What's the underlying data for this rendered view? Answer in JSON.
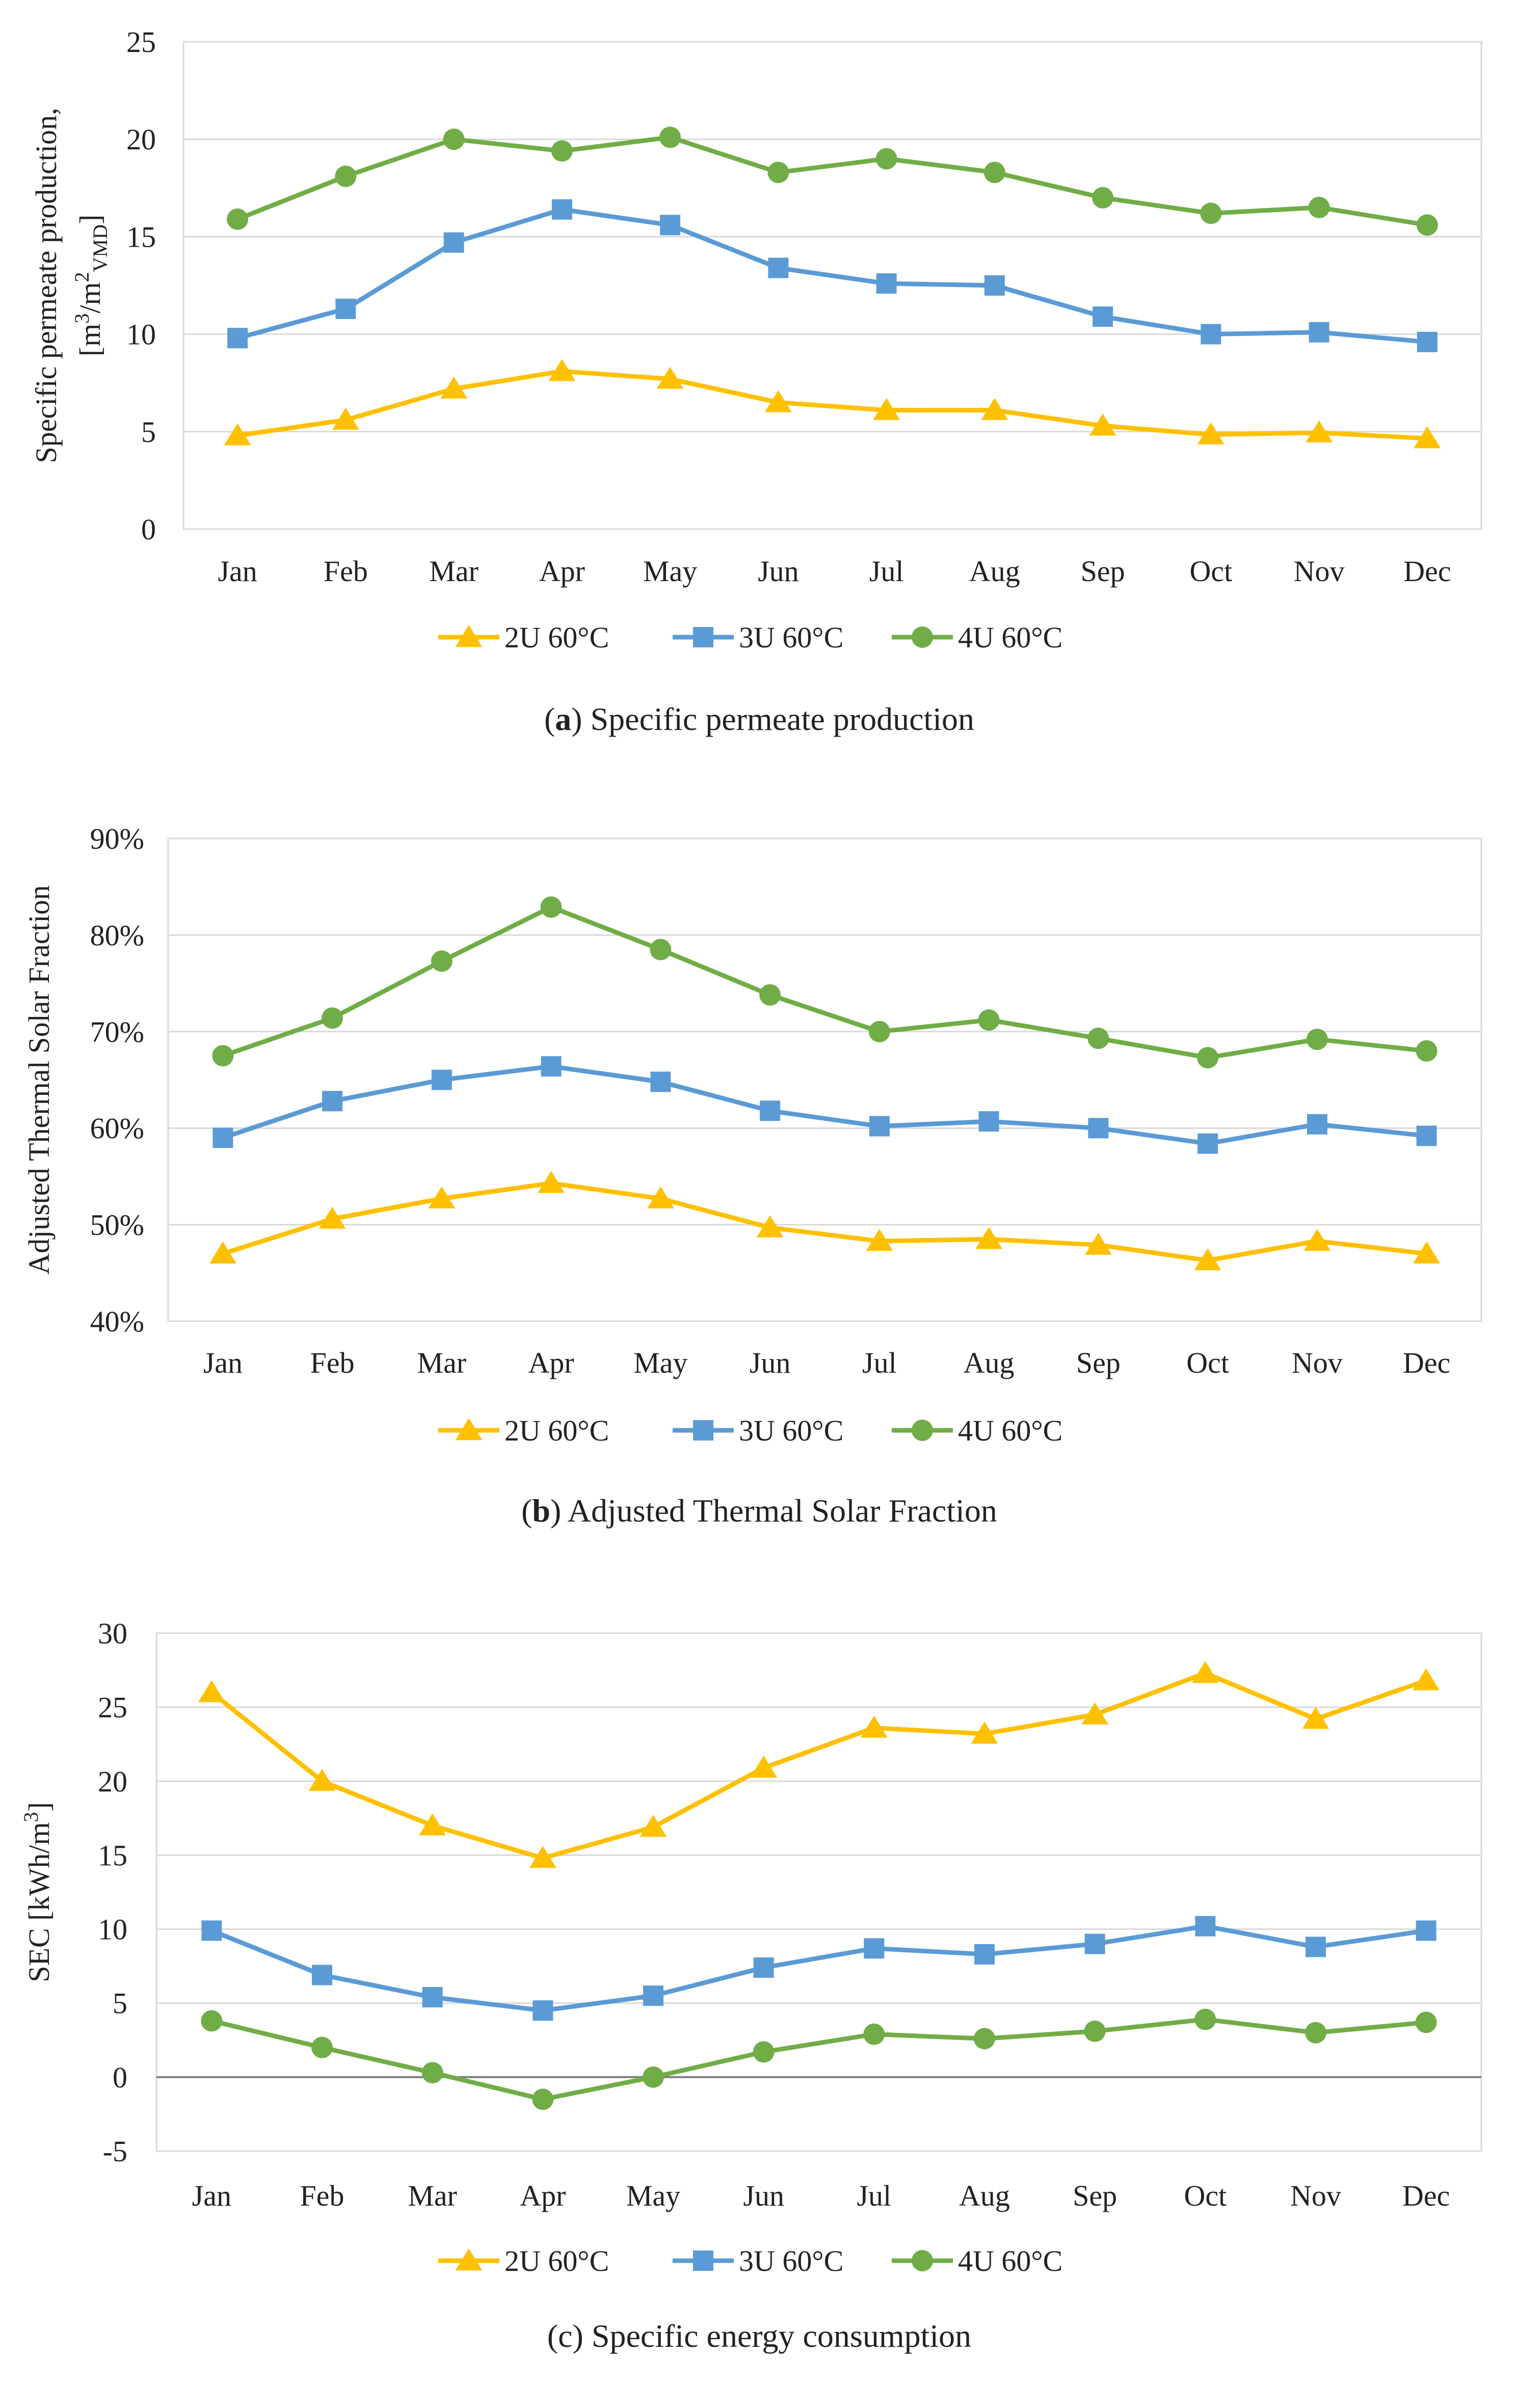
{
  "figure": {
    "series_colors": {
      "2U 60°C": "#FFC000",
      "3U 60°C": "#5B9BD5",
      "4U 60°C": "#70AD47"
    },
    "gridline_color": "#D9D9D9",
    "zero_line_color": "#7F7F7F"
  },
  "chart_data": [
    {
      "type": "line",
      "panel": "a",
      "caption_letter": "a",
      "caption_text": "Specific permeate production",
      "ylabel_line1": "Specific permeate production,",
      "ylabel_line2": "[m³/m²VMD]",
      "ylabel_parts": [
        "[m",
        "3",
        "/m",
        "2",
        "VMD",
        "]"
      ],
      "ylim": [
        0,
        25
      ],
      "yticks": [
        0,
        5,
        10,
        15,
        20,
        25
      ],
      "ytick_labels": [
        "0",
        "5",
        "10",
        "15",
        "20",
        "25"
      ],
      "categories": [
        "Jan",
        "Feb",
        "Mar",
        "Apr",
        "May",
        "Jun",
        "Jul",
        "Aug",
        "Sep",
        "Oct",
        "Nov",
        "Dec"
      ],
      "series": [
        {
          "name": "2U 60°C",
          "marker": "triangle",
          "values": [
            4.8,
            5.6,
            7.2,
            8.1,
            7.7,
            6.5,
            6.1,
            6.1,
            5.3,
            4.85,
            4.95,
            4.65
          ]
        },
        {
          "name": "3U 60°C",
          "marker": "square",
          "values": [
            9.8,
            11.3,
            14.7,
            16.4,
            15.6,
            13.4,
            12.6,
            12.5,
            10.9,
            10.0,
            10.1,
            9.6
          ]
        },
        {
          "name": "4U 60°C",
          "marker": "circle",
          "values": [
            15.9,
            18.1,
            20.0,
            19.4,
            20.1,
            18.3,
            19.0,
            18.3,
            17.0,
            16.2,
            16.5,
            15.6
          ]
        }
      ]
    },
    {
      "type": "line",
      "panel": "b",
      "caption_letter": "b",
      "caption_text": "Adjusted Thermal Solar Fraction",
      "ylabel_line1": "Adjusted Thermal Solar Fraction",
      "ylabel_line2": "",
      "ylim": [
        40,
        90
      ],
      "yticks": [
        40,
        50,
        60,
        70,
        80,
        90
      ],
      "ytick_labels": [
        "40%",
        "50%",
        "60%",
        "70%",
        "80%",
        "90%"
      ],
      "categories": [
        "Jan",
        "Feb",
        "Mar",
        "Apr",
        "May",
        "Jun",
        "Jul",
        "Aug",
        "Sep",
        "Oct",
        "Nov",
        "Dec"
      ],
      "series": [
        {
          "name": "2U 60°C",
          "marker": "triangle",
          "values": [
            47.0,
            50.6,
            52.7,
            54.3,
            52.7,
            49.7,
            48.3,
            48.5,
            47.9,
            46.3,
            48.3,
            47.0
          ]
        },
        {
          "name": "3U 60°C",
          "marker": "square",
          "values": [
            59.0,
            62.8,
            65.0,
            66.4,
            64.8,
            61.8,
            60.2,
            60.7,
            60.0,
            58.4,
            60.4,
            59.2
          ]
        },
        {
          "name": "4U 60°C",
          "marker": "circle",
          "values": [
            67.5,
            71.4,
            77.3,
            82.9,
            78.5,
            73.8,
            70.0,
            71.2,
            69.3,
            67.3,
            69.2,
            68.0
          ]
        }
      ]
    },
    {
      "type": "line",
      "panel": "c",
      "caption_letter": "c",
      "caption_text": "Specific energy consumption",
      "ylabel_line1": "SEC [kWh/m³]",
      "ylabel_line2": "",
      "ylabel_parts": [
        "SEC [kWh/m",
        "3",
        "]"
      ],
      "ylim": [
        -5,
        30
      ],
      "yticks": [
        -5,
        0,
        5,
        10,
        15,
        20,
        25,
        30
      ],
      "ytick_labels": [
        "-5",
        "0",
        "5",
        "10",
        "15",
        "20",
        "25",
        "30"
      ],
      "categories": [
        "Jan",
        "Feb",
        "Mar",
        "Apr",
        "May",
        "Jun",
        "Jul",
        "Aug",
        "Sep",
        "Oct",
        "Nov",
        "Dec"
      ],
      "series": [
        {
          "name": "2U 60°C",
          "marker": "triangle",
          "values": [
            26.0,
            20.0,
            17.0,
            14.8,
            16.9,
            20.9,
            23.6,
            23.2,
            24.5,
            27.3,
            24.2,
            26.8
          ]
        },
        {
          "name": "3U 60°C",
          "marker": "square",
          "values": [
            9.9,
            6.9,
            5.4,
            4.5,
            5.5,
            7.4,
            8.7,
            8.3,
            9.0,
            10.2,
            8.8,
            9.9
          ]
        },
        {
          "name": "4U 60°C",
          "marker": "circle",
          "values": [
            3.8,
            2.0,
            0.3,
            -1.5,
            0.0,
            1.7,
            2.9,
            2.6,
            3.1,
            3.9,
            3.0,
            3.7
          ]
        }
      ]
    }
  ]
}
